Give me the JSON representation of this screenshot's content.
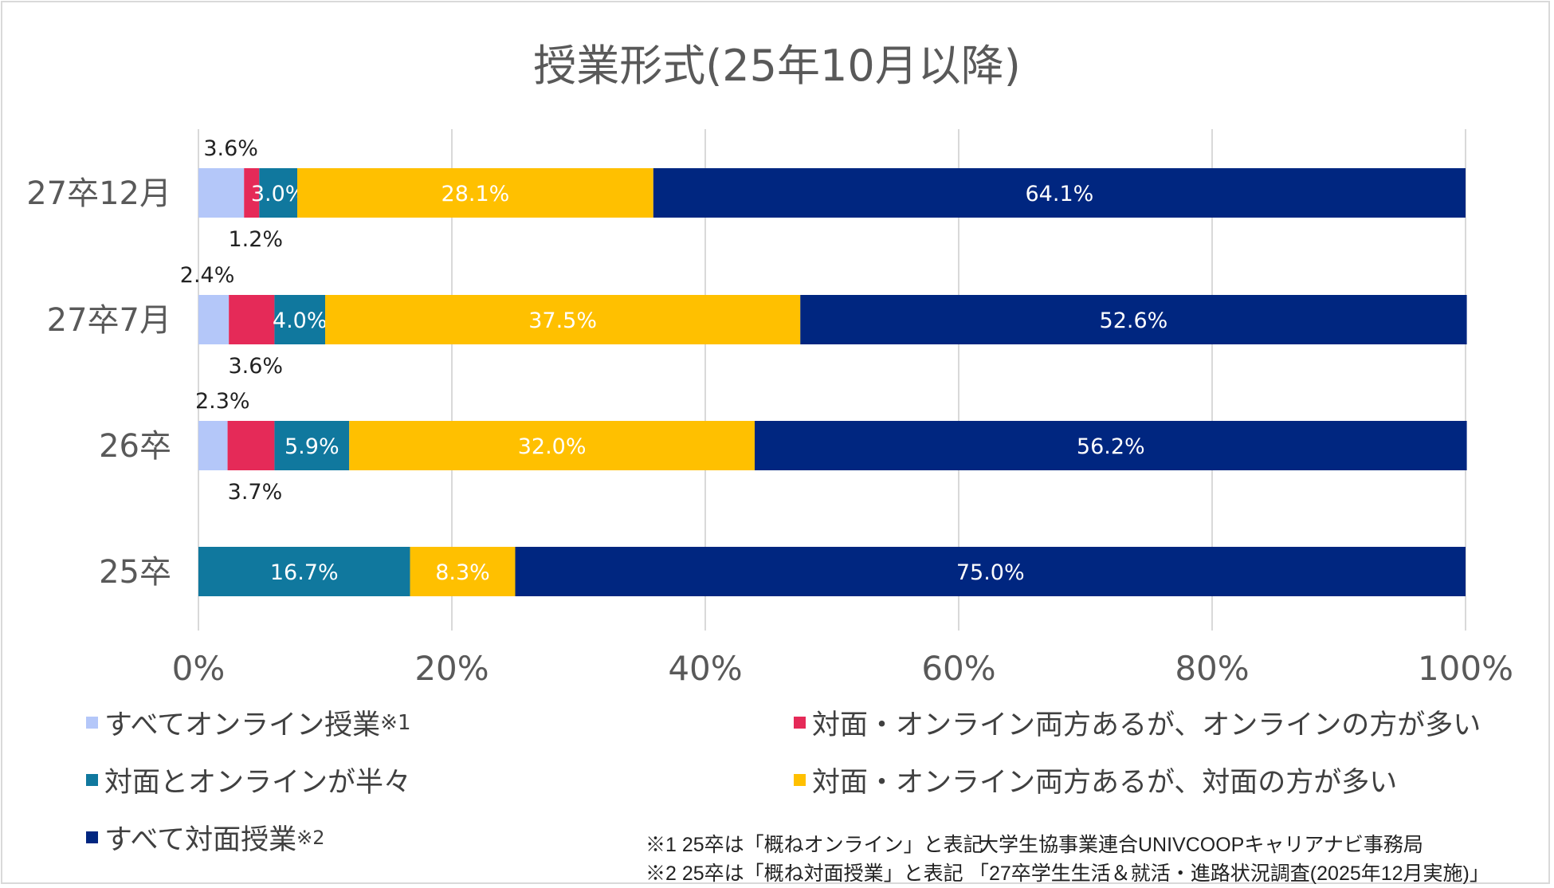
{
  "chart_data": {
    "type": "bar",
    "orientation": "horizontal-stacked-100",
    "title": "授業形式(25年10月以降)",
    "categories": [
      "27卒12月",
      "27卒7月",
      "26卒",
      "25卒"
    ],
    "series": [
      {
        "name": "すべてオンライン授業",
        "note": "※1",
        "color": "#b4c7f9",
        "values": [
          3.6,
          2.4,
          2.3,
          0
        ]
      },
      {
        "name": "対面・オンライン両方あるが、オンラインの方が多い",
        "color": "#e52a58",
        "values": [
          1.2,
          3.6,
          3.7,
          0
        ]
      },
      {
        "name": "対面とオンラインが半々",
        "color": "#10789e",
        "values": [
          3.0,
          4.0,
          5.9,
          16.7
        ]
      },
      {
        "name": "対面・オンライン両方あるが、対面の方が多い",
        "color": "#ffc000",
        "values": [
          28.1,
          37.5,
          32.0,
          8.3
        ]
      },
      {
        "name": "すべて対面授業",
        "note": "※2",
        "color": "#002680",
        "values": [
          64.1,
          52.6,
          56.2,
          75.0
        ]
      }
    ],
    "x_ticks": [
      "0%",
      "20%",
      "40%",
      "60%",
      "80%",
      "100%"
    ],
    "xlim": [
      0,
      100
    ],
    "grid": true,
    "legend_placement": "bottom"
  },
  "footnotes": {
    "note1": "※1  25卒は「概ねオンライン」と表記",
    "note2": "※2  25卒は「概ね対面授業」と表記",
    "source1": "大学生協事業連合UNIVCOOPキャリアナビ事務局",
    "source2": "「27卒学生生活＆就活・進路状況調査(2025年12月実施)」"
  }
}
